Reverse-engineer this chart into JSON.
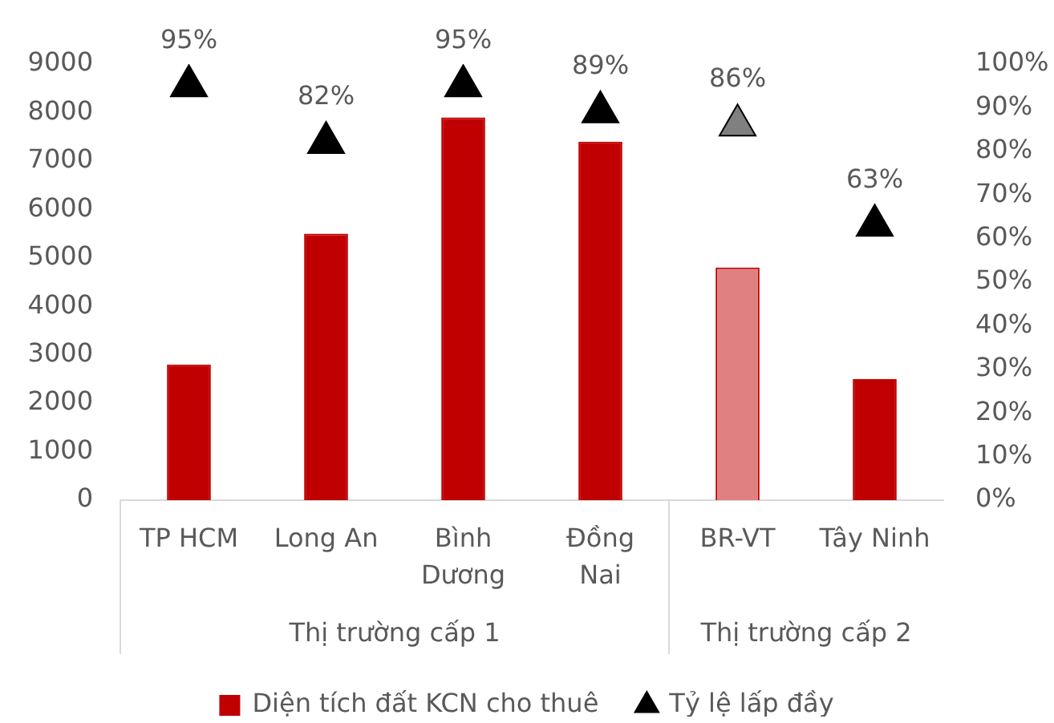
{
  "chart_data": {
    "type": "bar",
    "categories": [
      "TP HCM",
      "Long An",
      "Bình Dương",
      "Đồng Nai",
      "BR-VT",
      "Tây Ninh"
    ],
    "series": [
      {
        "name": "Diện tích đất KCN cho thuê",
        "color": "#c00000",
        "colors": [
          "#c00000",
          "#c00000",
          "#c00000",
          "#c00000",
          "#e08080",
          "#c00000"
        ],
        "values": [
          2800,
          5500,
          7900,
          7400,
          4800,
          2500
        ]
      },
      {
        "name": "Tỷ lệ lấp đầy",
        "type": "scatter",
        "axis": "y2",
        "marker": "triangle",
        "color": "#000000",
        "colors": [
          "#000000",
          "#000000",
          "#000000",
          "#000000",
          "#808080",
          "#000000"
        ],
        "x": [
          "TP HCM",
          "Long An",
          "Bình Dương",
          "Đồng Nai",
          "BR-VT",
          "Tây Ninh"
        ],
        "values": [
          95,
          82,
          95,
          89,
          86,
          63
        ],
        "value_labels": [
          "95%",
          "82%",
          "95%",
          "89%",
          "86%",
          "63%"
        ]
      }
    ],
    "ylim": [
      0,
      9000
    ],
    "yticks": [
      0,
      1000,
      2000,
      3000,
      4000,
      5000,
      6000,
      7000,
      8000,
      9000
    ],
    "y2lim": [
      0,
      100
    ],
    "y2ticks": [
      {
        "value": 0,
        "label": "0%"
      },
      {
        "value": 10,
        "label": "10%"
      },
      {
        "value": 20,
        "label": "20%"
      },
      {
        "value": 30,
        "label": "30%"
      },
      {
        "value": 40,
        "label": "40%"
      },
      {
        "value": 50,
        "label": "50%"
      },
      {
        "value": 60,
        "label": "60%"
      },
      {
        "value": 70,
        "label": "70%"
      },
      {
        "value": 80,
        "label": "80%"
      },
      {
        "value": 90,
        "label": "90%"
      },
      {
        "value": 100,
        "label": "100%"
      }
    ],
    "annotations": [
      "Thị trường cấp 1",
      "Thị trường cấp 2"
    ],
    "legend": "bottom"
  }
}
